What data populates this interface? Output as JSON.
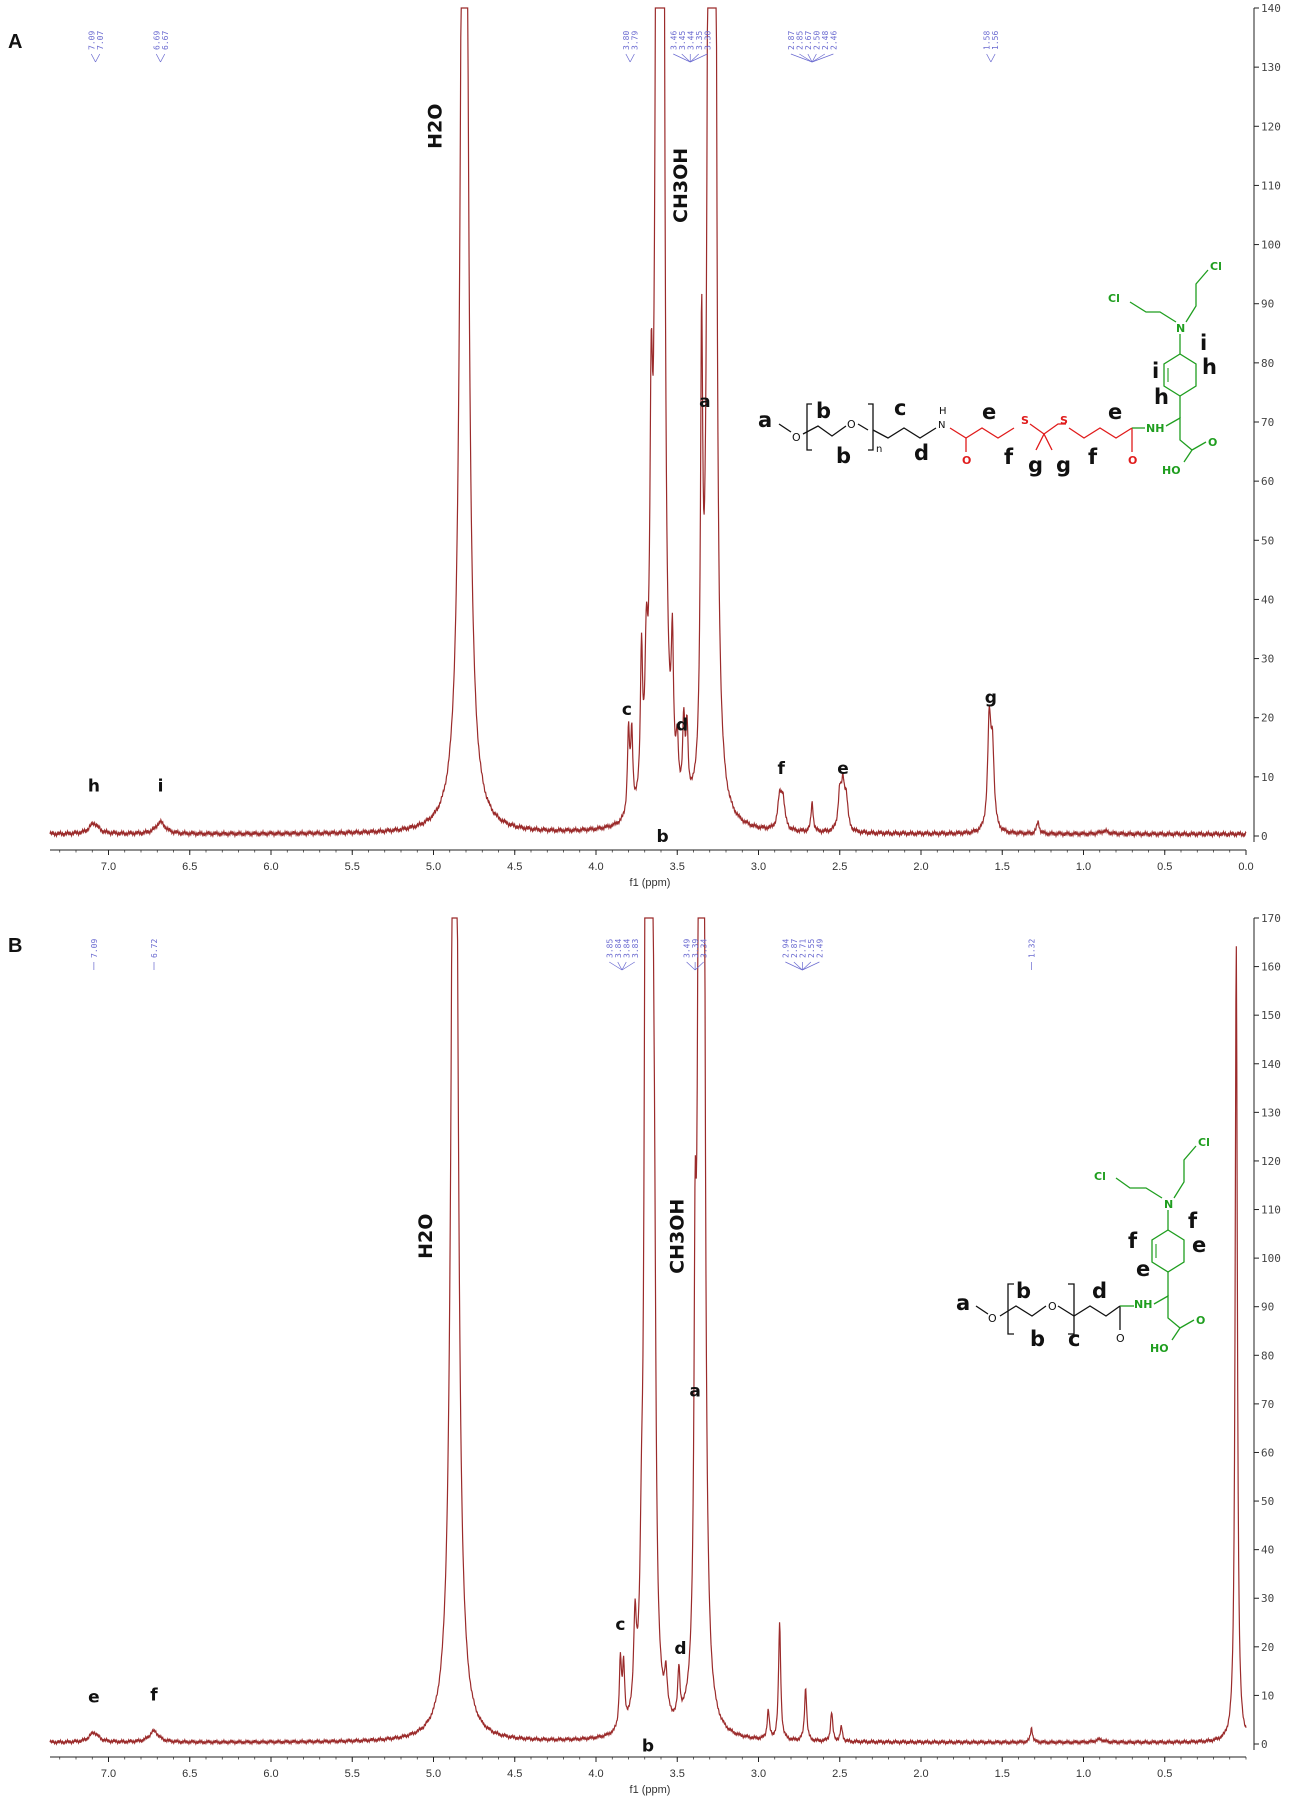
{
  "colors": {
    "spectrum": "#9b2b2b",
    "shift_labels": "#6a6ad0",
    "axis": "#222222",
    "pegylated": "#111111",
    "linker": "#e01b1b",
    "melphalan": "#1f9e1f"
  },
  "chart_data": [
    {
      "panel": "A",
      "type": "line",
      "xlabel": "f1 (ppm)",
      "xlim": [
        7.4,
        0.0
      ],
      "x_reversed": true,
      "ylim": [
        -2,
        140
      ],
      "x_ticks": [
        "7.0",
        "6.5",
        "6.0",
        "5.5",
        "5.0",
        "4.5",
        "4.0",
        "3.5",
        "3.0",
        "2.5",
        "2.0",
        "1.5",
        "1.0",
        "0.5",
        "0.0"
      ],
      "y_ticks": [
        "0",
        "10",
        "20",
        "30",
        "40",
        "50",
        "60",
        "70",
        "80",
        "90",
        "100",
        "110",
        "120",
        "130",
        "140"
      ],
      "baseline": 0.3,
      "peaks": [
        {
          "x": 4.81,
          "y": 300,
          "w": 0.02
        },
        {
          "x": 3.62,
          "y": 300,
          "w": 0.012
        },
        {
          "x": 3.59,
          "y": 280,
          "w": 0.01
        },
        {
          "x": 3.3,
          "y": 300,
          "w": 0.012
        },
        {
          "x": 3.27,
          "y": 260,
          "w": 0.01
        },
        {
          "x": 3.35,
          "y": 70,
          "w": 0.008
        },
        {
          "x": 3.66,
          "y": 52,
          "w": 0.01
        },
        {
          "x": 3.69,
          "y": 20,
          "w": 0.01
        },
        {
          "x": 3.72,
          "y": 24,
          "w": 0.008
        },
        {
          "x": 3.8,
          "y": 14,
          "w": 0.008
        },
        {
          "x": 3.78,
          "y": 13,
          "w": 0.008
        },
        {
          "x": 3.53,
          "y": 22,
          "w": 0.008
        },
        {
          "x": 3.46,
          "y": 13,
          "w": 0.008
        },
        {
          "x": 3.44,
          "y": 12,
          "w": 0.008
        },
        {
          "x": 3.5,
          "y": 8,
          "w": 0.008
        },
        {
          "x": 2.87,
          "y": 5,
          "w": 0.014
        },
        {
          "x": 2.85,
          "y": 5,
          "w": 0.014
        },
        {
          "x": 2.67,
          "y": 5,
          "w": 0.008
        },
        {
          "x": 2.5,
          "y": 6,
          "w": 0.012
        },
        {
          "x": 2.48,
          "y": 7,
          "w": 0.012
        },
        {
          "x": 2.46,
          "y": 5,
          "w": 0.012
        },
        {
          "x": 1.58,
          "y": 18,
          "w": 0.012
        },
        {
          "x": 1.56,
          "y": 13,
          "w": 0.012
        },
        {
          "x": 1.28,
          "y": 2,
          "w": 0.01
        },
        {
          "x": 7.09,
          "y": 1.8,
          "w": 0.035
        },
        {
          "x": 6.68,
          "y": 2,
          "w": 0.035
        },
        {
          "x": 0.87,
          "y": 0.5,
          "w": 0.03
        }
      ],
      "peak_labels": [
        {
          "text": "h",
          "x": 7.09,
          "y": 7.5
        },
        {
          "text": "i",
          "x": 6.68,
          "y": 7.5
        },
        {
          "text": "c",
          "x": 3.81,
          "y": 20.5
        },
        {
          "text": "d",
          "x": 3.47,
          "y": 17.8
        },
        {
          "text": "b",
          "x": 3.59,
          "y": -1.0
        },
        {
          "text": "a",
          "x": 3.33,
          "y": 72.5
        },
        {
          "text": "f",
          "x": 2.86,
          "y": 10.5
        },
        {
          "text": "e",
          "x": 2.48,
          "y": 10.5
        },
        {
          "text": "g",
          "x": 1.57,
          "y": 22.5
        }
      ],
      "solvent_labels": [
        {
          "text": "H2O",
          "x": 4.95,
          "y": 120
        },
        {
          "text": "CH3OH",
          "x": 3.44,
          "y": 110
        }
      ],
      "shift_groups": [
        {
          "x": 7.08,
          "labels": [
            "7.09",
            "7.07"
          ]
        },
        {
          "x": 6.68,
          "labels": [
            "6.69",
            "6.67"
          ]
        },
        {
          "x": 3.79,
          "labels": [
            "3.80",
            "3.79"
          ]
        },
        {
          "x": 3.42,
          "labels": [
            "3.46",
            "3.45",
            "3.44",
            "3.35",
            "3.30"
          ]
        },
        {
          "x": 2.67,
          "labels": [
            "2.87",
            "2.85",
            "2.67",
            "2.50",
            "2.48",
            "2.46"
          ]
        },
        {
          "x": 1.57,
          "labels": [
            "1.58",
            "1.56"
          ]
        }
      ]
    },
    {
      "panel": "B",
      "type": "line",
      "xlabel": "f1 (ppm)",
      "xlim": [
        7.4,
        0.0
      ],
      "x_reversed": true,
      "ylim": [
        -2,
        170
      ],
      "x_ticks": [
        "7.0",
        "6.5",
        "6.0",
        "5.5",
        "5.0",
        "4.5",
        "4.0",
        "3.5",
        "3.0",
        "2.5",
        "2.0",
        "1.5",
        "1.0",
        "0.5"
      ],
      "y_ticks": [
        "0",
        "10",
        "20",
        "30",
        "40",
        "50",
        "60",
        "70",
        "80",
        "90",
        "100",
        "110",
        "120",
        "130",
        "140",
        "150",
        "160",
        "170"
      ],
      "baseline": 0.3,
      "peaks": [
        {
          "x": 4.87,
          "y": 300,
          "w": 0.02
        },
        {
          "x": 3.69,
          "y": 300,
          "w": 0.01
        },
        {
          "x": 3.66,
          "y": 300,
          "w": 0.01
        },
        {
          "x": 3.36,
          "y": 300,
          "w": 0.012
        },
        {
          "x": 3.34,
          "y": 250,
          "w": 0.01
        },
        {
          "x": 3.39,
          "y": 67,
          "w": 0.008
        },
        {
          "x": 3.64,
          "y": 60,
          "w": 0.01
        },
        {
          "x": 3.72,
          "y": 20,
          "w": 0.01
        },
        {
          "x": 3.76,
          "y": 18,
          "w": 0.01
        },
        {
          "x": 3.85,
          "y": 14,
          "w": 0.008
        },
        {
          "x": 3.83,
          "y": 12,
          "w": 0.008
        },
        {
          "x": 3.57,
          "y": 8,
          "w": 0.01
        },
        {
          "x": 3.49,
          "y": 10,
          "w": 0.008
        },
        {
          "x": 2.94,
          "y": 6,
          "w": 0.008
        },
        {
          "x": 2.87,
          "y": 24,
          "w": 0.008
        },
        {
          "x": 2.71,
          "y": 11,
          "w": 0.008
        },
        {
          "x": 2.55,
          "y": 6,
          "w": 0.008
        },
        {
          "x": 2.49,
          "y": 3,
          "w": 0.008
        },
        {
          "x": 1.32,
          "y": 3,
          "w": 0.008
        },
        {
          "x": 0.06,
          "y": 165,
          "w": 0.008
        },
        {
          "x": 7.09,
          "y": 2.0,
          "w": 0.035
        },
        {
          "x": 6.72,
          "y": 2.3,
          "w": 0.035
        },
        {
          "x": 0.9,
          "y": 0.6,
          "w": 0.03
        }
      ],
      "peak_labels": [
        {
          "text": "e",
          "x": 7.09,
          "y": 8.5
        },
        {
          "text": "f",
          "x": 6.72,
          "y": 9.0
        },
        {
          "text": "c",
          "x": 3.85,
          "y": 23.5
        },
        {
          "text": "d",
          "x": 3.48,
          "y": 18.5
        },
        {
          "text": "b",
          "x": 3.68,
          "y": -1.5
        },
        {
          "text": "a",
          "x": 3.39,
          "y": 71.5
        },
        {
          "text": "H2O",
          "x": 5.01,
          "y": 104.5,
          "solvent": true
        },
        {
          "text": "CH3OH",
          "x": 3.46,
          "y": 104.5,
          "solvent": true
        }
      ],
      "shift_groups": [
        {
          "x": 7.09,
          "labels": [
            "7.09"
          ]
        },
        {
          "x": 6.72,
          "labels": [
            "6.72"
          ]
        },
        {
          "x": 3.84,
          "labels": [
            "3.85",
            "3.84",
            "3.84",
            "3.83"
          ]
        },
        {
          "x": 3.39,
          "labels": [
            "3.49",
            "3.39",
            "3.34"
          ]
        },
        {
          "x": 2.73,
          "labels": [
            "2.94",
            "2.87",
            "2.71",
            "2.55",
            "2.49"
          ]
        },
        {
          "x": 1.32,
          "labels": [
            "1.32"
          ]
        }
      ]
    }
  ],
  "panels": [
    {
      "letter": "A",
      "top": 0
    },
    {
      "letter": "B",
      "top": 905
    }
  ],
  "structure_a": {
    "tags": {
      "a": "a",
      "b1": "b",
      "b2": "b",
      "n": "n",
      "c": "c",
      "d": "d",
      "e1": "e",
      "e2": "e",
      "f1": "f",
      "f2": "f",
      "g1": "g",
      "g2": "g",
      "h1": "h",
      "h2": "h",
      "i1": "i",
      "i2": "i"
    },
    "atoms": {
      "o1": "O",
      "o2": "O",
      "nh1_h": "H",
      "nh1_n": "N",
      "s1": "S",
      "s2": "S",
      "o_red1": "O",
      "o_red2": "O",
      "nh2": "NH",
      "o_green": "O",
      "ho": "HO",
      "cl1": "Cl",
      "cl2": "Cl",
      "n_green": "N"
    }
  },
  "structure_b": {
    "tags": {
      "a": "a",
      "b1": "b",
      "b2": "b",
      "c": "c",
      "d": "d",
      "e1": "e",
      "e2": "e",
      "f1": "f",
      "f2": "f"
    },
    "atoms": {
      "o1": "O",
      "o2": "O",
      "o_amide": "O",
      "nh": "NH",
      "o_green": "O",
      "ho": "HO",
      "cl1": "Cl",
      "cl2": "Cl",
      "n_green": "N"
    }
  }
}
